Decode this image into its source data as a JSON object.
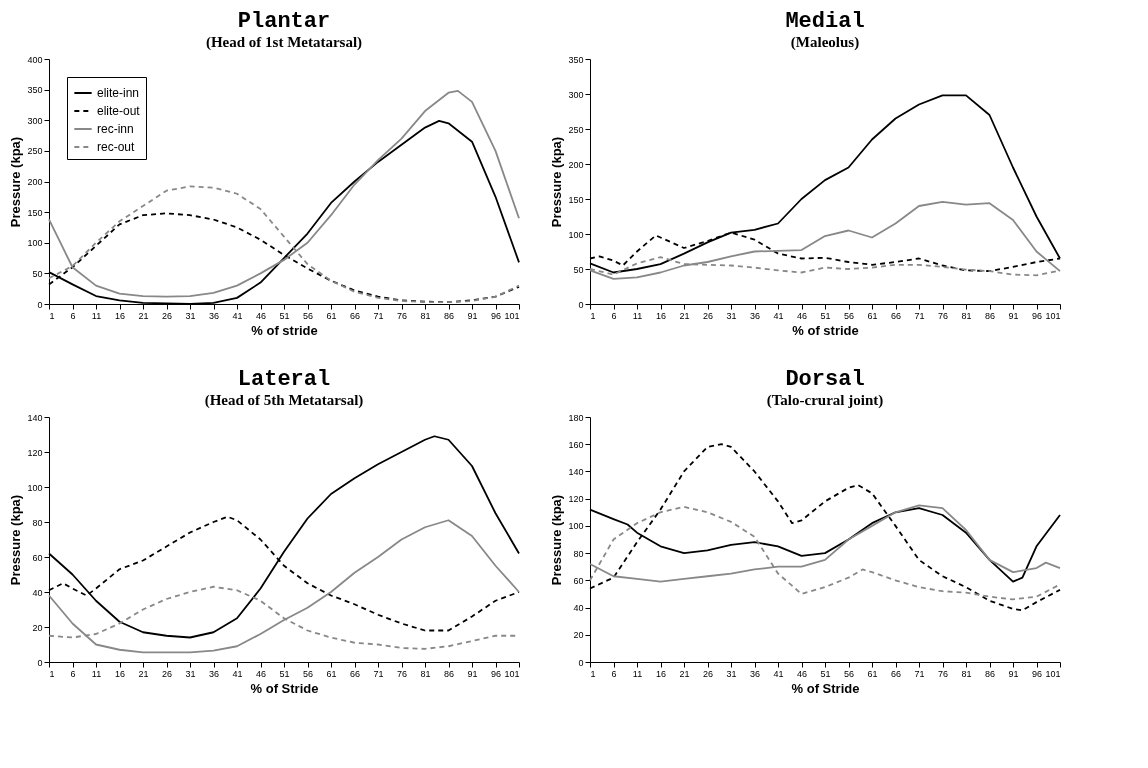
{
  "chart_data": [
    {
      "type": "line",
      "title": "Plantar",
      "subtitle": "(Head of 1st Metatarsal)",
      "xlabel": "% of stride",
      "ylabel": "Pressure (kpa)",
      "xlim": [
        1,
        101
      ],
      "xticks": [
        1,
        6,
        11,
        16,
        21,
        26,
        31,
        36,
        41,
        46,
        51,
        56,
        61,
        66,
        71,
        76,
        81,
        86,
        91,
        96,
        101
      ],
      "ylim": [
        0,
        400
      ],
      "yticks": [
        0,
        50,
        100,
        150,
        200,
        250,
        300,
        350,
        400
      ],
      "grid": false,
      "legend": "top left",
      "marker": "none",
      "series": [
        {
          "name": "elite-inn",
          "color": "#000000",
          "line_style": "solid",
          "x": [
            1,
            6,
            11,
            16,
            21,
            26,
            31,
            36,
            41,
            46,
            51,
            56,
            61,
            66,
            71,
            76,
            81,
            84,
            86,
            91,
            96,
            101
          ],
          "values": [
            52,
            32,
            13,
            6,
            2,
            1,
            0,
            2,
            10,
            35,
            75,
            115,
            165,
            200,
            232,
            260,
            288,
            299,
            295,
            265,
            175,
            68
          ]
        },
        {
          "name": "elite-out",
          "color": "#000000",
          "line_style": "dashed",
          "x": [
            1,
            6,
            11,
            16,
            21,
            26,
            31,
            36,
            41,
            46,
            51,
            56,
            61,
            66,
            71,
            76,
            81,
            86,
            91,
            96,
            101
          ],
          "values": [
            32,
            60,
            95,
            130,
            145,
            148,
            145,
            138,
            125,
            105,
            80,
            58,
            38,
            22,
            12,
            6,
            4,
            3,
            6,
            12,
            28
          ]
        },
        {
          "name": "rec-inn",
          "color": "#888888",
          "line_style": "solid",
          "x": [
            1,
            6,
            11,
            16,
            21,
            26,
            31,
            36,
            41,
            46,
            51,
            56,
            61,
            66,
            71,
            76,
            81,
            86,
            88,
            91,
            96,
            101
          ],
          "values": [
            138,
            60,
            30,
            17,
            13,
            12,
            13,
            18,
            30,
            50,
            72,
            100,
            145,
            195,
            235,
            270,
            315,
            345,
            348,
            330,
            250,
            140
          ]
        },
        {
          "name": "rec-out",
          "color": "#888888",
          "line_style": "dashed",
          "x": [
            1,
            6,
            11,
            16,
            21,
            26,
            31,
            36,
            41,
            46,
            51,
            56,
            61,
            66,
            71,
            76,
            81,
            86,
            91,
            96,
            101
          ],
          "values": [
            42,
            62,
            100,
            135,
            160,
            185,
            192,
            190,
            180,
            155,
            110,
            65,
            38,
            20,
            10,
            5,
            3,
            3,
            5,
            12,
            30
          ]
        }
      ]
    },
    {
      "type": "line",
      "title": "Medial",
      "subtitle": "(Maleolus)",
      "xlabel": "% of stride",
      "ylabel": "Pressure (kpa)",
      "xlim": [
        1,
        101
      ],
      "xticks": [
        1,
        6,
        11,
        16,
        21,
        26,
        31,
        36,
        41,
        46,
        51,
        56,
        61,
        66,
        71,
        76,
        81,
        86,
        91,
        96,
        101
      ],
      "ylim": [
        0,
        350
      ],
      "yticks": [
        0,
        50,
        100,
        150,
        200,
        250,
        300,
        350
      ],
      "grid": false,
      "marker": "none",
      "series": [
        {
          "color": "#000000",
          "line_style": "solid",
          "x": [
            1,
            6,
            11,
            16,
            21,
            26,
            31,
            36,
            41,
            46,
            51,
            56,
            61,
            66,
            71,
            76,
            81,
            86,
            91,
            96,
            101
          ],
          "values": [
            58,
            45,
            50,
            57,
            72,
            88,
            102,
            106,
            115,
            150,
            177,
            195,
            235,
            265,
            285,
            298,
            298,
            270,
            195,
            125,
            65
          ]
        },
        {
          "color": "#000000",
          "line_style": "dashed",
          "x": [
            1,
            3,
            6,
            8,
            11,
            15,
            21,
            26,
            31,
            36,
            41,
            46,
            51,
            56,
            61,
            66,
            71,
            76,
            81,
            86,
            91,
            96,
            101
          ],
          "values": [
            65,
            68,
            62,
            55,
            75,
            98,
            80,
            90,
            102,
            92,
            72,
            65,
            66,
            60,
            56,
            60,
            65,
            55,
            48,
            47,
            53,
            60,
            65
          ]
        },
        {
          "color": "#888888",
          "line_style": "solid",
          "x": [
            1,
            6,
            11,
            16,
            21,
            26,
            31,
            36,
            41,
            46,
            51,
            56,
            61,
            66,
            71,
            76,
            81,
            86,
            91,
            96,
            101
          ],
          "values": [
            48,
            36,
            38,
            45,
            55,
            60,
            68,
            75,
            76,
            77,
            97,
            105,
            95,
            115,
            140,
            146,
            142,
            144,
            120,
            75,
            47
          ]
        },
        {
          "color": "#888888",
          "line_style": "dashed",
          "x": [
            1,
            6,
            11,
            16,
            21,
            26,
            31,
            36,
            41,
            46,
            51,
            56,
            61,
            66,
            71,
            76,
            81,
            86,
            91,
            96,
            101
          ],
          "values": [
            50,
            42,
            58,
            67,
            57,
            56,
            55,
            52,
            48,
            45,
            52,
            50,
            52,
            56,
            56,
            53,
            49,
            47,
            42,
            41,
            48
          ]
        }
      ]
    },
    {
      "type": "line",
      "title": "Lateral",
      "subtitle": "(Head of 5th Metatarsal)",
      "xlabel": "% of Stride",
      "ylabel": "Pressure (kpa)",
      "xlim": [
        1,
        101
      ],
      "xticks": [
        1,
        6,
        11,
        16,
        21,
        26,
        31,
        36,
        41,
        46,
        51,
        56,
        61,
        66,
        71,
        76,
        81,
        86,
        91,
        96,
        101
      ],
      "ylim": [
        0,
        140
      ],
      "yticks": [
        0,
        20,
        40,
        60,
        80,
        100,
        120,
        140
      ],
      "grid": false,
      "marker": "none",
      "series": [
        {
          "color": "#000000",
          "line_style": "solid",
          "x": [
            1,
            6,
            11,
            16,
            21,
            26,
            31,
            36,
            41,
            46,
            51,
            56,
            61,
            66,
            71,
            76,
            81,
            83,
            86,
            91,
            96,
            101
          ],
          "values": [
            62,
            50,
            35,
            23,
            17,
            15,
            14,
            17,
            25,
            42,
            63,
            82,
            96,
            105,
            113,
            120,
            127,
            129,
            127,
            112,
            85,
            62
          ]
        },
        {
          "color": "#000000",
          "line_style": "dashed",
          "x": [
            1,
            4,
            6,
            9,
            11,
            16,
            21,
            26,
            31,
            36,
            39,
            41,
            46,
            51,
            56,
            61,
            66,
            71,
            76,
            81,
            86,
            91,
            96,
            101
          ],
          "values": [
            41,
            45,
            42,
            38,
            42,
            53,
            58,
            66,
            74,
            80,
            83,
            81,
            70,
            55,
            45,
            38,
            33,
            27,
            22,
            18,
            18,
            26,
            35,
            40
          ]
        },
        {
          "color": "#888888",
          "line_style": "solid",
          "x": [
            1,
            6,
            11,
            16,
            21,
            26,
            31,
            36,
            41,
            46,
            51,
            56,
            61,
            66,
            71,
            76,
            81,
            86,
            91,
            96,
            101
          ],
          "values": [
            38,
            22,
            10,
            7,
            5.5,
            5.5,
            5.5,
            6.5,
            9,
            16,
            24,
            31,
            40,
            51,
            60,
            70,
            77,
            81,
            72,
            55,
            40
          ]
        },
        {
          "color": "#888888",
          "line_style": "dashed",
          "x": [
            1,
            6,
            11,
            16,
            21,
            26,
            31,
            36,
            41,
            46,
            51,
            56,
            61,
            66,
            71,
            76,
            81,
            86,
            91,
            96,
            101
          ],
          "values": [
            15,
            14,
            16,
            22,
            30,
            36,
            40,
            43,
            41,
            35,
            25,
            18,
            14,
            11,
            10,
            8,
            7.5,
            9,
            12,
            15,
            15
          ]
        }
      ]
    },
    {
      "type": "line",
      "title": "Dorsal",
      "subtitle": "(Talo-crural joint)",
      "xlabel": "% of Stride",
      "ylabel": "Pressure (kpa)",
      "xlim": [
        1,
        101
      ],
      "xticks": [
        1,
        6,
        11,
        16,
        21,
        26,
        31,
        36,
        41,
        46,
        51,
        56,
        61,
        66,
        71,
        76,
        81,
        86,
        91,
        96,
        101
      ],
      "ylim": [
        0,
        180
      ],
      "yticks": [
        0,
        20,
        40,
        60,
        80,
        100,
        120,
        140,
        160,
        180
      ],
      "grid": false,
      "marker": "none",
      "series": [
        {
          "color": "#000000",
          "line_style": "solid",
          "x": [
            1,
            6,
            9,
            11,
            16,
            21,
            26,
            31,
            36,
            41,
            46,
            51,
            56,
            61,
            66,
            71,
            76,
            81,
            86,
            91,
            93,
            96,
            101
          ],
          "values": [
            112,
            105,
            101,
            95,
            85,
            80,
            82,
            86,
            88,
            85,
            78,
            80,
            90,
            102,
            110,
            113,
            108,
            95,
            75,
            59,
            62,
            85,
            108
          ]
        },
        {
          "color": "#000000",
          "line_style": "dashed",
          "x": [
            1,
            6,
            11,
            16,
            21,
            26,
            29,
            31,
            36,
            41,
            44,
            46,
            51,
            56,
            58,
            61,
            66,
            71,
            76,
            81,
            86,
            91,
            93,
            96,
            101
          ],
          "values": [
            54,
            62,
            88,
            112,
            140,
            158,
            160,
            158,
            140,
            118,
            102,
            104,
            118,
            128,
            130,
            124,
            100,
            75,
            63,
            55,
            45,
            39,
            38,
            44,
            53
          ]
        },
        {
          "color": "#888888",
          "line_style": "solid",
          "x": [
            1,
            6,
            11,
            16,
            21,
            26,
            31,
            36,
            41,
            46,
            51,
            56,
            61,
            66,
            71,
            76,
            81,
            86,
            91,
            96,
            98,
            101
          ],
          "values": [
            72,
            63,
            61,
            59,
            61,
            63,
            65,
            68,
            70,
            70,
            75,
            90,
            100,
            110,
            115,
            113,
            97,
            75,
            66,
            69,
            73,
            69
          ]
        },
        {
          "color": "#888888",
          "line_style": "dashed",
          "x": [
            1,
            6,
            11,
            16,
            21,
            26,
            31,
            36,
            41,
            46,
            51,
            56,
            59,
            61,
            66,
            71,
            76,
            81,
            86,
            91,
            96,
            101
          ],
          "values": [
            60,
            90,
            102,
            110,
            114,
            110,
            103,
            92,
            65,
            50,
            55,
            62,
            68,
            66,
            60,
            55,
            52,
            51,
            48,
            46,
            48,
            57
          ]
        }
      ]
    }
  ]
}
